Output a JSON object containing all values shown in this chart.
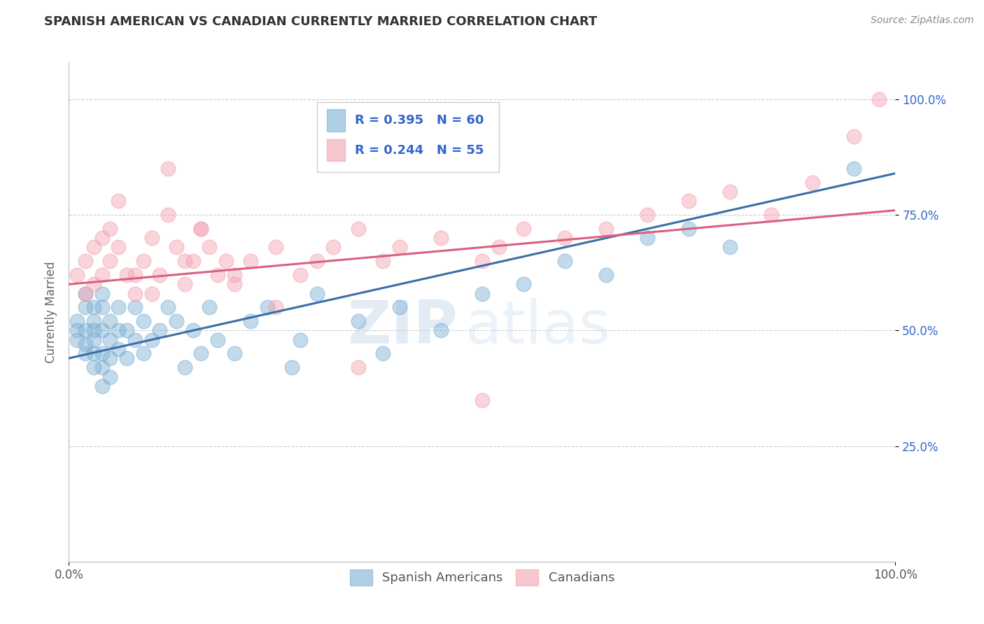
{
  "title": "SPANISH AMERICAN VS CANADIAN CURRENTLY MARRIED CORRELATION CHART",
  "source_text": "Source: ZipAtlas.com",
  "ylabel": "Currently Married",
  "xlabel": "",
  "xlim": [
    0.0,
    1.0
  ],
  "ylim": [
    0.0,
    1.08
  ],
  "ytick_positions": [
    0.25,
    0.5,
    0.75,
    1.0
  ],
  "ytick_labels": [
    "25.0%",
    "50.0%",
    "75.0%",
    "100.0%"
  ],
  "blue_color": "#7BAFD4",
  "pink_color": "#F4A0B0",
  "blue_line_color": "#3B6EA8",
  "pink_line_color": "#D96080",
  "blue_R": 0.395,
  "blue_N": 60,
  "pink_R": 0.244,
  "pink_N": 55,
  "blue_label": "Spanish Americans",
  "pink_label": "Canadians",
  "watermark_zip": "ZIP",
  "watermark_atlas": "atlas",
  "background_color": "#FFFFFF",
  "title_color": "#333333",
  "title_fontsize": 13,
  "legend_text_color": "#3366CC",
  "source_color": "#888888",
  "blue_scatter_x": [
    0.01,
    0.01,
    0.01,
    0.02,
    0.02,
    0.02,
    0.02,
    0.02,
    0.03,
    0.03,
    0.03,
    0.03,
    0.03,
    0.03,
    0.04,
    0.04,
    0.04,
    0.04,
    0.04,
    0.04,
    0.05,
    0.05,
    0.05,
    0.05,
    0.06,
    0.06,
    0.06,
    0.07,
    0.07,
    0.08,
    0.08,
    0.09,
    0.09,
    0.1,
    0.11,
    0.12,
    0.13,
    0.14,
    0.15,
    0.16,
    0.17,
    0.18,
    0.2,
    0.22,
    0.24,
    0.27,
    0.28,
    0.3,
    0.35,
    0.38,
    0.4,
    0.45,
    0.5,
    0.55,
    0.6,
    0.65,
    0.7,
    0.75,
    0.8,
    0.95
  ],
  "blue_scatter_y": [
    0.48,
    0.5,
    0.52,
    0.45,
    0.47,
    0.5,
    0.55,
    0.58,
    0.42,
    0.45,
    0.48,
    0.5,
    0.52,
    0.55,
    0.38,
    0.42,
    0.45,
    0.5,
    0.55,
    0.58,
    0.4,
    0.44,
    0.48,
    0.52,
    0.46,
    0.5,
    0.55,
    0.44,
    0.5,
    0.48,
    0.55,
    0.45,
    0.52,
    0.48,
    0.5,
    0.55,
    0.52,
    0.42,
    0.5,
    0.45,
    0.55,
    0.48,
    0.45,
    0.52,
    0.55,
    0.42,
    0.48,
    0.58,
    0.52,
    0.45,
    0.55,
    0.5,
    0.58,
    0.6,
    0.65,
    0.62,
    0.7,
    0.72,
    0.68,
    0.85
  ],
  "pink_scatter_x": [
    0.01,
    0.02,
    0.02,
    0.03,
    0.03,
    0.04,
    0.04,
    0.05,
    0.05,
    0.06,
    0.07,
    0.08,
    0.09,
    0.1,
    0.11,
    0.12,
    0.13,
    0.14,
    0.15,
    0.16,
    0.17,
    0.18,
    0.19,
    0.2,
    0.22,
    0.25,
    0.28,
    0.3,
    0.32,
    0.35,
    0.38,
    0.4,
    0.45,
    0.5,
    0.52,
    0.55,
    0.6,
    0.65,
    0.7,
    0.75,
    0.8,
    0.85,
    0.9,
    0.95,
    0.98,
    0.06,
    0.08,
    0.1,
    0.12,
    0.14,
    0.16,
    0.2,
    0.25,
    0.35,
    0.5
  ],
  "pink_scatter_y": [
    0.62,
    0.58,
    0.65,
    0.6,
    0.68,
    0.62,
    0.7,
    0.65,
    0.72,
    0.68,
    0.62,
    0.58,
    0.65,
    0.7,
    0.62,
    0.75,
    0.68,
    0.6,
    0.65,
    0.72,
    0.68,
    0.62,
    0.65,
    0.6,
    0.65,
    0.68,
    0.62,
    0.65,
    0.68,
    0.72,
    0.65,
    0.68,
    0.7,
    0.65,
    0.68,
    0.72,
    0.7,
    0.72,
    0.75,
    0.78,
    0.8,
    0.75,
    0.82,
    0.92,
    1.0,
    0.78,
    0.62,
    0.58,
    0.85,
    0.65,
    0.72,
    0.62,
    0.55,
    0.42,
    0.35
  ]
}
